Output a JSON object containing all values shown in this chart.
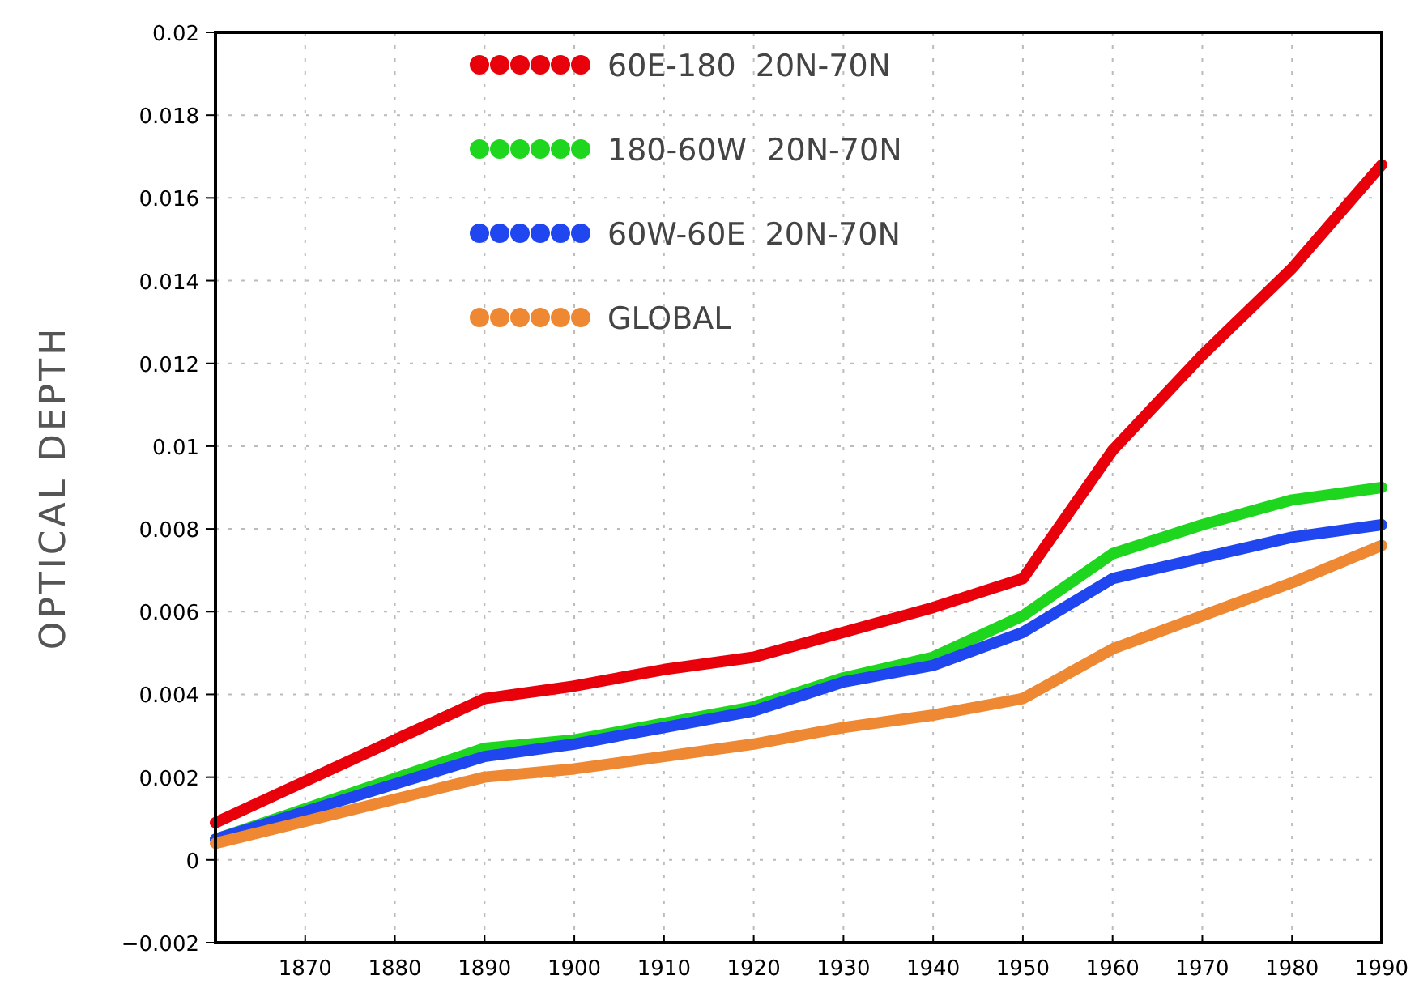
{
  "chart_data": {
    "type": "line",
    "ylabel": "OPTICAL DEPTH",
    "x": [
      1860,
      1890,
      1900,
      1910,
      1920,
      1930,
      1940,
      1950,
      1960,
      1970,
      1980,
      1990
    ],
    "series": [
      {
        "name": "60E-180  20N-70N",
        "color": "#e8000b",
        "values": [
          0.0009,
          0.0039,
          0.0042,
          0.0046,
          0.0049,
          0.0055,
          0.0061,
          0.0068,
          0.0099,
          0.0122,
          0.0143,
          0.0168
        ]
      },
      {
        "name": "180-60W  20N-70N",
        "color": "#1fd61f",
        "values": [
          0.0005,
          0.0027,
          0.0029,
          0.0033,
          0.0037,
          0.0044,
          0.0049,
          0.0059,
          0.0074,
          0.0081,
          0.0087,
          0.009
        ]
      },
      {
        "name": "60W-60E  20N-70N",
        "color": "#2046f0",
        "values": [
          0.0005,
          0.0025,
          0.0028,
          0.0032,
          0.0036,
          0.0043,
          0.0047,
          0.0055,
          0.0068,
          0.0073,
          0.0078,
          0.0081
        ]
      },
      {
        "name": "GLOBAL",
        "color": "#ee8833",
        "values": [
          0.0004,
          0.002,
          0.0022,
          0.0025,
          0.0028,
          0.0032,
          0.0035,
          0.0039,
          0.0051,
          0.0059,
          0.0067,
          0.0076
        ]
      }
    ],
    "xlim": [
      1860,
      1990
    ],
    "xticks": [
      1870,
      1880,
      1890,
      1900,
      1910,
      1920,
      1930,
      1940,
      1950,
      1960,
      1970,
      1980,
      1990
    ],
    "ylim": [
      -0.002,
      0.02
    ],
    "yticks": [
      -0.002,
      0,
      0.002,
      0.004,
      0.006,
      0.008,
      0.01,
      0.012,
      0.014,
      0.016,
      0.018,
      0.02
    ],
    "grid": true,
    "legend": "top",
    "marker": "none",
    "line_style": "solid"
  }
}
